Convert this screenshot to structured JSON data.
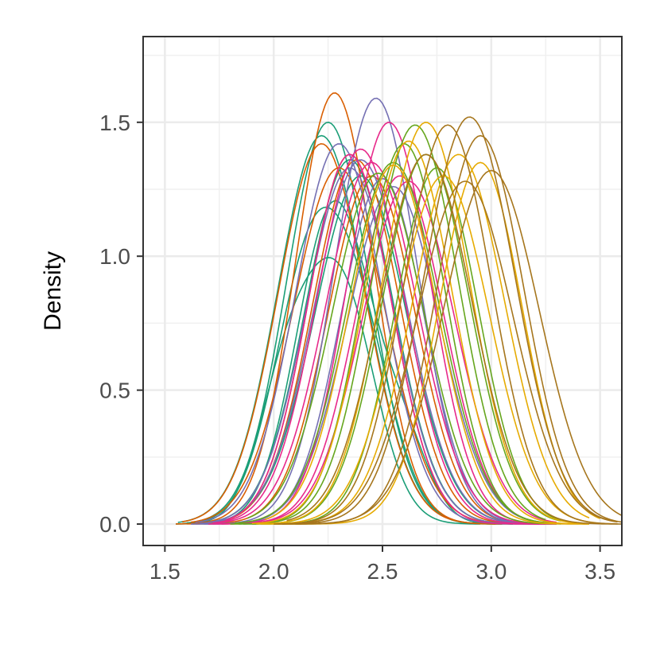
{
  "chart_data": {
    "type": "line",
    "xlabel": "",
    "ylabel": "Density",
    "xlim": [
      1.4,
      3.6
    ],
    "ylim": [
      -0.08,
      1.82
    ],
    "x_ticks": [
      1.5,
      2.0,
      2.5,
      3.0,
      3.5
    ],
    "x_tick_labels": [
      "1.5",
      "2.0",
      "2.5",
      "3.0",
      "3.5"
    ],
    "y_ticks": [
      0.0,
      0.5,
      1.0,
      1.5
    ],
    "y_tick_labels": [
      "0.0",
      "0.5",
      "1.0",
      "1.5"
    ],
    "grid": true,
    "legend": "none",
    "group_colors": [
      "#1b9e77",
      "#d95f02",
      "#7570b3",
      "#e7298a",
      "#66a61e",
      "#e6ab02",
      "#a6761d"
    ],
    "series": [
      {
        "group": 0,
        "start": 1.55,
        "end": 2.95,
        "peaks": [
          [
            2.05,
            0.13,
            0.45
          ],
          [
            2.3,
            0.16,
            0.9
          ]
        ]
      },
      {
        "group": 0,
        "start": 1.56,
        "end": 3.0,
        "peaks": [
          [
            2.22,
            0.2,
            1.45
          ]
        ]
      },
      {
        "group": 0,
        "start": 1.58,
        "end": 3.02,
        "peaks": [
          [
            2.18,
            0.17,
            1.0
          ],
          [
            2.42,
            0.15,
            0.5
          ]
        ]
      },
      {
        "group": 0,
        "start": 1.6,
        "end": 3.05,
        "peaks": [
          [
            2.25,
            0.19,
            1.5
          ]
        ]
      },
      {
        "group": 0,
        "start": 1.62,
        "end": 3.05,
        "peaks": [
          [
            2.35,
            0.2,
            1.36
          ]
        ]
      },
      {
        "group": 0,
        "start": 1.63,
        "end": 3.1,
        "peaks": [
          [
            2.28,
            0.17,
            1.2
          ],
          [
            2.6,
            0.12,
            0.25
          ]
        ]
      },
      {
        "group": 0,
        "start": 1.65,
        "end": 3.08,
        "peaks": [
          [
            2.4,
            0.21,
            1.3
          ]
        ]
      },
      {
        "group": 1,
        "start": 1.55,
        "end": 3.02,
        "peaks": [
          [
            2.28,
            0.18,
            1.61
          ]
        ]
      },
      {
        "group": 1,
        "start": 1.58,
        "end": 3.05,
        "peaks": [
          [
            2.22,
            0.2,
            1.42
          ]
        ]
      },
      {
        "group": 1,
        "start": 1.6,
        "end": 3.08,
        "peaks": [
          [
            2.35,
            0.19,
            1.38
          ]
        ]
      },
      {
        "group": 1,
        "start": 1.62,
        "end": 3.1,
        "peaks": [
          [
            2.3,
            0.21,
            1.33
          ]
        ]
      },
      {
        "group": 1,
        "start": 1.64,
        "end": 3.12,
        "peaks": [
          [
            2.45,
            0.2,
            1.3
          ]
        ]
      },
      {
        "group": 1,
        "start": 1.66,
        "end": 3.15,
        "peaks": [
          [
            2.38,
            0.2,
            1.36
          ]
        ]
      },
      {
        "group": 2,
        "start": 1.62,
        "end": 3.15,
        "peaks": [
          [
            2.47,
            0.19,
            1.59
          ]
        ]
      },
      {
        "group": 2,
        "start": 1.64,
        "end": 3.18,
        "peaks": [
          [
            2.3,
            0.2,
            1.42
          ]
        ]
      },
      {
        "group": 2,
        "start": 1.66,
        "end": 3.2,
        "peaks": [
          [
            2.4,
            0.21,
            1.36
          ]
        ]
      },
      {
        "group": 2,
        "start": 1.68,
        "end": 3.2,
        "peaks": [
          [
            2.5,
            0.19,
            1.29
          ]
        ]
      },
      {
        "group": 2,
        "start": 1.7,
        "end": 3.22,
        "peaks": [
          [
            2.35,
            0.2,
            1.33
          ]
        ]
      },
      {
        "group": 2,
        "start": 1.72,
        "end": 3.25,
        "peaks": [
          [
            2.55,
            0.21,
            1.26
          ]
        ]
      },
      {
        "group": 3,
        "start": 1.7,
        "end": 3.2,
        "peaks": [
          [
            2.53,
            0.19,
            1.5
          ]
        ]
      },
      {
        "group": 3,
        "start": 1.72,
        "end": 3.25,
        "peaks": [
          [
            2.4,
            0.2,
            1.4
          ]
        ]
      },
      {
        "group": 3,
        "start": 1.74,
        "end": 3.28,
        "peaks": [
          [
            2.45,
            0.21,
            1.35
          ]
        ]
      },
      {
        "group": 3,
        "start": 1.76,
        "end": 3.28,
        "peaks": [
          [
            2.58,
            0.2,
            1.3
          ]
        ]
      },
      {
        "group": 3,
        "start": 1.78,
        "end": 3.3,
        "peaks": [
          [
            2.35,
            0.19,
            1.38
          ]
        ]
      },
      {
        "group": 3,
        "start": 1.8,
        "end": 3.3,
        "peaks": [
          [
            2.62,
            0.21,
            1.28
          ]
        ]
      },
      {
        "group": 4,
        "start": 1.8,
        "end": 3.25,
        "peaks": [
          [
            2.65,
            0.2,
            1.49
          ]
        ]
      },
      {
        "group": 4,
        "start": 1.82,
        "end": 3.28,
        "peaks": [
          [
            2.55,
            0.21,
            1.35
          ]
        ]
      },
      {
        "group": 4,
        "start": 1.84,
        "end": 3.3,
        "peaks": [
          [
            2.6,
            0.19,
            1.42
          ]
        ]
      },
      {
        "group": 4,
        "start": 1.86,
        "end": 3.32,
        "peaks": [
          [
            2.7,
            0.2,
            1.38
          ]
        ]
      },
      {
        "group": 4,
        "start": 1.88,
        "end": 3.32,
        "peaks": [
          [
            2.48,
            0.21,
            1.31
          ]
        ]
      },
      {
        "group": 4,
        "start": 1.9,
        "end": 3.35,
        "peaks": [
          [
            2.75,
            0.19,
            1.33
          ]
        ]
      },
      {
        "group": 5,
        "start": 1.9,
        "end": 3.4,
        "peaks": [
          [
            2.62,
            0.2,
            1.43
          ]
        ]
      },
      {
        "group": 5,
        "start": 1.92,
        "end": 3.42,
        "peaks": [
          [
            2.7,
            0.2,
            1.5
          ]
        ]
      },
      {
        "group": 5,
        "start": 1.94,
        "end": 3.45,
        "peaks": [
          [
            2.85,
            0.21,
            1.38
          ]
        ]
      },
      {
        "group": 5,
        "start": 1.96,
        "end": 3.45,
        "peaks": [
          [
            2.55,
            0.2,
            1.34
          ]
        ]
      },
      {
        "group": 5,
        "start": 1.98,
        "end": 3.48,
        "peaks": [
          [
            2.78,
            0.21,
            1.3
          ]
        ]
      },
      {
        "group": 5,
        "start": 2.0,
        "end": 3.5,
        "peaks": [
          [
            2.95,
            0.19,
            1.35
          ]
        ]
      },
      {
        "group": 6,
        "start": 2.0,
        "end": 3.55,
        "peaks": [
          [
            2.9,
            0.21,
            1.52
          ]
        ]
      },
      {
        "group": 6,
        "start": 2.02,
        "end": 3.58,
        "peaks": [
          [
            2.8,
            0.2,
            1.49
          ]
        ]
      },
      {
        "group": 6,
        "start": 2.04,
        "end": 3.6,
        "peaks": [
          [
            3.0,
            0.22,
            1.32
          ]
        ]
      },
      {
        "group": 6,
        "start": 2.06,
        "end": 3.6,
        "peaks": [
          [
            2.7,
            0.21,
            1.38
          ]
        ]
      },
      {
        "group": 6,
        "start": 2.08,
        "end": 3.58,
        "peaks": [
          [
            2.88,
            0.22,
            1.28
          ]
        ]
      },
      {
        "group": 6,
        "start": 2.1,
        "end": 3.6,
        "peaks": [
          [
            2.95,
            0.2,
            1.45
          ]
        ]
      }
    ]
  }
}
